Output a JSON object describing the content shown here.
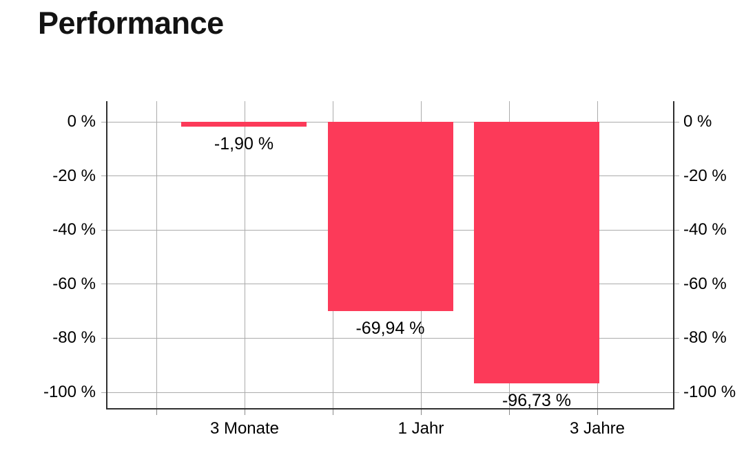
{
  "header": {
    "title": "Performance"
  },
  "chart_data": {
    "type": "bar",
    "title": "Performance",
    "categories": [
      "3 Monate",
      "1 Jahr",
      "3 Jahre"
    ],
    "values": [
      -1.9,
      -69.94,
      -96.73
    ],
    "data_labels": [
      "-1,90 %",
      "-69,94 %",
      "-96,73 %"
    ],
    "y_tick_values": [
      0,
      -20,
      -40,
      -60,
      -80,
      -100
    ],
    "y_tick_labels_left": [
      "0 %",
      "-20 %",
      "-40 %",
      "-60 %",
      "-80 %",
      "-100 %"
    ],
    "y_tick_labels_right": [
      "0 %",
      "-20 %",
      "-40 %",
      "-60 %",
      "-80 %",
      "-100 %"
    ],
    "xlabel": "",
    "ylabel": "",
    "ylim": [
      7.6,
      -106.4
    ],
    "grid": true,
    "legend": "none",
    "colors": {
      "bar": "#FC3A59",
      "gridline": "#ABABAB",
      "axis": "#2F2F2F",
      "text": "#000000",
      "title": "#131313",
      "background": "#FFFFFF"
    }
  }
}
